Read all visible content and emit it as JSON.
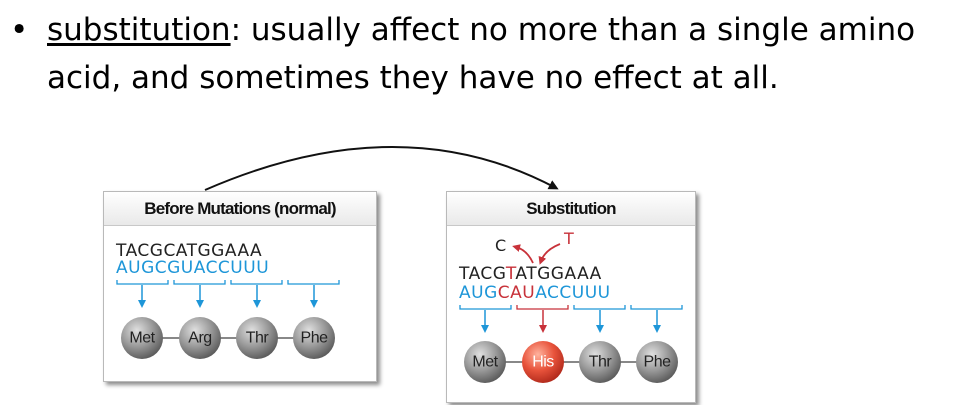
{
  "bullet": {
    "marker": "•",
    "term": "substitution",
    "separator": ":",
    "line1_rest": " usually affect no more than a single amino",
    "line2": "acid, and sometimes they have no effect at all."
  },
  "before_panel": {
    "title": "Before Mutations (normal)",
    "dna": "TACGCATGGAAA",
    "mrna": "AUGCGUACCUUU",
    "amino_acids": [
      "Met",
      "Arg",
      "Thr",
      "Phe"
    ]
  },
  "after_panel": {
    "title": "Substitution",
    "removed_base": "C",
    "inserted_base": "T",
    "dna_prefix": "TACG",
    "dna_changed": "T",
    "dna_suffix": "ATGGAAA",
    "mrna": "AUGCAUACCUUU",
    "amino_acids": [
      "Met",
      "His",
      "Thr",
      "Phe"
    ],
    "mutated_index": 1
  },
  "colors": {
    "rna_blue": "#1e96d8",
    "mutation_red": "#c8323a",
    "amino_gray": "#8f8f8f",
    "mutant_orange": "#e8533b"
  }
}
